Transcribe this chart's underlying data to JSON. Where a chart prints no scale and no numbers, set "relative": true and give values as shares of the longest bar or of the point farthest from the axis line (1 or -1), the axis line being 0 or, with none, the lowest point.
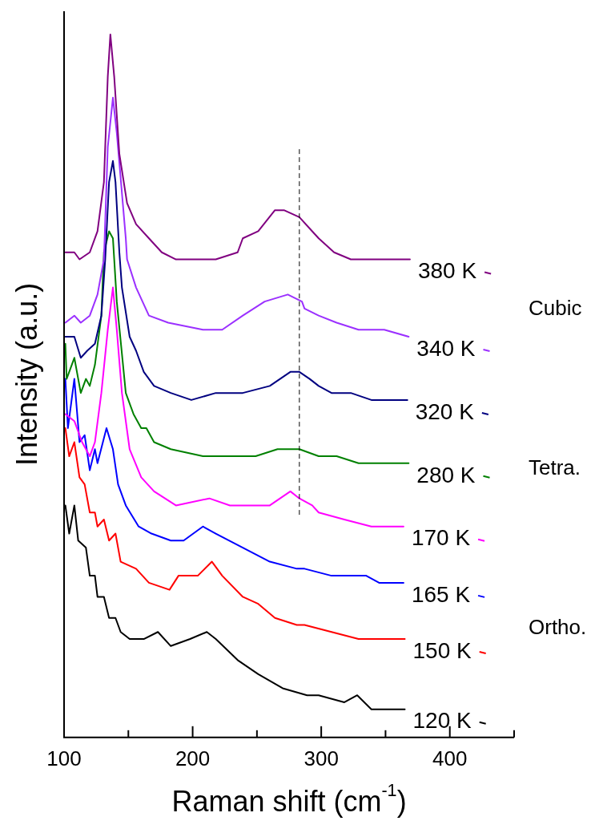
{
  "chart_data": {
    "type": "line",
    "xlabel": "Raman shift (cm$^{-1}$)",
    "ylabel": "Intensity (a.u.)",
    "relative": true,
    "xlim": [
      100,
      450
    ],
    "xticks": [
      100,
      {
        "value": 150,
        "label": null
      },
      200,
      {
        "value": 250,
        "label": null
      },
      300,
      {
        "value": 350,
        "label": null
      },
      400,
      {
        "value": 450,
        "label": null
      }
    ],
    "legend": "right",
    "marker": "none",
    "line_style": "solid",
    "annotations": [
      "Cubic",
      "Tetra.",
      "Ortho."
    ],
    "ref_lines": [
      {
        "axis": "x",
        "value": 283,
        "color": "#000000",
        "line_style": "dashed"
      }
    ],
    "series": [
      {
        "name": "380 K",
        "color": "#800080",
        "x": [
          101,
          108,
          112,
          120,
          126,
          131,
          134,
          136,
          139,
          143,
          149,
          156,
          166,
          176,
          187,
          204,
          218,
          235,
          239,
          251,
          264,
          271,
          283,
          293,
          298,
          310,
          323,
          339,
          356,
          369
        ],
        "values": [
          0.69,
          0.69,
          0.68,
          0.69,
          0.72,
          0.79,
          0.94,
          1.0,
          0.94,
          0.83,
          0.76,
          0.73,
          0.71,
          0.69,
          0.68,
          0.68,
          0.68,
          0.69,
          0.71,
          0.72,
          0.75,
          0.75,
          0.74,
          0.72,
          0.71,
          0.69,
          0.68,
          0.68,
          0.68,
          0.68
        ]
      },
      {
        "name": "340 K",
        "color": "#9b30ff",
        "x": [
          101,
          108,
          113,
          120,
          126,
          131,
          134,
          138,
          141,
          148,
          149,
          156,
          166,
          181,
          208,
          223,
          239,
          256,
          274,
          285,
          287,
          298,
          312,
          329,
          349,
          368
        ],
        "values": [
          0.59,
          0.6,
          0.59,
          0.6,
          0.63,
          0.68,
          0.84,
          0.91,
          0.86,
          0.71,
          0.68,
          0.64,
          0.6,
          0.59,
          0.58,
          0.58,
          0.6,
          0.62,
          0.63,
          0.62,
          0.61,
          0.6,
          0.59,
          0.58,
          0.58,
          0.57
        ]
      },
      {
        "name": "320 K",
        "color": "#000080",
        "x": [
          101,
          108,
          113,
          118,
          124,
          129,
          132,
          135,
          138,
          140,
          143,
          145,
          151,
          156,
          162,
          170,
          183,
          199,
          218,
          239,
          260,
          276,
          283,
          291,
          298,
          308,
          323,
          339,
          356,
          367
        ],
        "values": [
          0.57,
          0.57,
          0.54,
          0.55,
          0.56,
          0.6,
          0.68,
          0.79,
          0.82,
          0.79,
          0.69,
          0.64,
          0.57,
          0.55,
          0.52,
          0.5,
          0.49,
          0.48,
          0.49,
          0.49,
          0.5,
          0.52,
          0.52,
          0.51,
          0.5,
          0.49,
          0.49,
          0.48,
          0.48,
          0.48
        ]
      },
      {
        "name": "280 K",
        "color": "#008000",
        "x": [
          101,
          102,
          108,
          113,
          117,
          120,
          124,
          129,
          131,
          135,
          138,
          139,
          141,
          148,
          154,
          160,
          164,
          170,
          183,
          208,
          229,
          249,
          266,
          283,
          298,
          312,
          329,
          349,
          368
        ],
        "values": [
          0.56,
          0.51,
          0.54,
          0.49,
          0.51,
          0.5,
          0.53,
          0.6,
          0.69,
          0.72,
          0.71,
          0.68,
          0.62,
          0.49,
          0.46,
          0.44,
          0.44,
          0.42,
          0.41,
          0.4,
          0.4,
          0.4,
          0.41,
          0.41,
          0.4,
          0.4,
          0.39,
          0.39,
          0.39
        ]
      },
      {
        "name": "170 K",
        "color": "#ff00ff",
        "x": [
          101,
          108,
          114,
          120,
          124,
          129,
          134,
          138,
          141,
          145,
          151,
          160,
          170,
          187,
          213,
          229,
          249,
          260,
          276,
          283,
          293,
          298,
          318,
          339,
          364
        ],
        "values": [
          0.46,
          0.45,
          0.42,
          0.4,
          0.42,
          0.49,
          0.58,
          0.64,
          0.58,
          0.49,
          0.41,
          0.37,
          0.35,
          0.33,
          0.34,
          0.33,
          0.33,
          0.33,
          0.35,
          0.34,
          0.33,
          0.32,
          0.31,
          0.3,
          0.3
        ]
      },
      {
        "name": "165 K",
        "color": "#0000ff",
        "x": [
          101,
          103,
          108,
          112,
          116,
          120,
          124,
          126,
          133,
          138,
          142,
          148,
          158,
          168,
          183,
          193,
          208,
          218,
          239,
          260,
          281,
          287,
          308,
          323,
          335,
          345,
          364
        ],
        "values": [
          0.51,
          0.44,
          0.51,
          0.42,
          0.43,
          0.38,
          0.41,
          0.39,
          0.44,
          0.41,
          0.36,
          0.33,
          0.3,
          0.29,
          0.28,
          0.28,
          0.3,
          0.29,
          0.27,
          0.25,
          0.24,
          0.24,
          0.23,
          0.23,
          0.23,
          0.22,
          0.22
        ]
      },
      {
        "name": "150 K",
        "color": "#ff0000",
        "x": [
          101,
          104,
          108,
          112,
          116,
          120,
          124,
          126,
          131,
          135,
          140,
          144,
          156,
          166,
          182,
          189,
          204,
          215,
          223,
          239,
          251,
          264,
          281,
          287,
          308,
          329,
          345,
          356,
          365
        ],
        "values": [
          0.44,
          0.4,
          0.42,
          0.37,
          0.36,
          0.32,
          0.32,
          0.3,
          0.31,
          0.28,
          0.29,
          0.25,
          0.24,
          0.22,
          0.21,
          0.23,
          0.23,
          0.25,
          0.23,
          0.2,
          0.19,
          0.17,
          0.16,
          0.16,
          0.15,
          0.14,
          0.14,
          0.14,
          0.14
        ]
      },
      {
        "name": "120 K",
        "color": "#000000",
        "x": [
          101,
          104,
          108,
          111,
          117,
          120,
          124,
          126,
          131,
          135,
          140,
          144,
          151,
          162,
          173,
          183,
          198,
          211,
          218,
          235,
          251,
          270,
          289,
          298,
          318,
          328,
          339,
          356,
          365
        ],
        "values": [
          0.33,
          0.29,
          0.33,
          0.28,
          0.27,
          0.23,
          0.23,
          0.2,
          0.2,
          0.17,
          0.17,
          0.15,
          0.14,
          0.14,
          0.15,
          0.13,
          0.14,
          0.15,
          0.14,
          0.11,
          0.09,
          0.07,
          0.06,
          0.06,
          0.05,
          0.06,
          0.04,
          0.04,
          0.04
        ]
      }
    ]
  }
}
